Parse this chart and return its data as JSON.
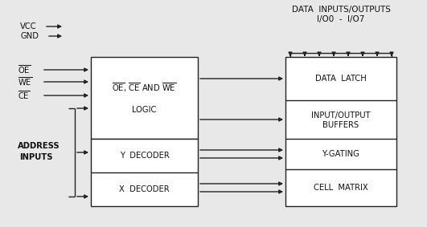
{
  "bg_color": "#e8e8e8",
  "line_color": "#222222",
  "box_color": "#ffffff",
  "text_color": "#111111",
  "vcc_label": "VCC",
  "gnd_label": "GND",
  "oe_label": "OE",
  "we_label": "WE",
  "ce_label": "CE",
  "logic_box_label2": "LOGIC",
  "y_decoder_label": "Y  DECODER",
  "x_decoder_label": "X  DECODER",
  "data_latch_label": "DATA  LATCH",
  "io_buffers_label1": "INPUT/OUTPUT",
  "io_buffers_label2": "BUFFERS",
  "y_gating_label": "Y-GATING",
  "cell_matrix_label": "CELL  MATRIX",
  "data_io_label1": "DATA  INPUTS/OUTPUTS",
  "data_io_label2": "I/O0  -  I/O7"
}
